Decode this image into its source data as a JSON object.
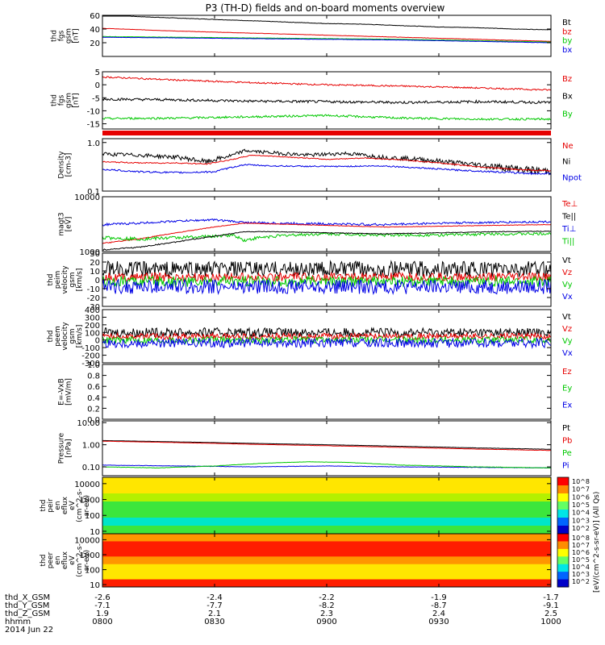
{
  "title": "P3 (TH-D) fields and on-board moments overview",
  "chart_data": [
    {
      "type": "line",
      "ylabel": [
        "thd",
        "fgs",
        "gsm",
        "[nT]"
      ],
      "ylim": [
        0,
        60
      ],
      "yticks": [
        "60",
        "40",
        "20"
      ],
      "yticks_val": [
        60,
        40,
        20
      ],
      "legend": [
        {
          "name": "Bt",
          "color": "#000000"
        },
        {
          "name": "bz",
          "color": "#e60000"
        },
        {
          "name": "by",
          "color": "#00c800"
        },
        {
          "name": "bx",
          "color": "#0000e6"
        }
      ],
      "series": [
        {
          "name": "Bt",
          "color": "#000000",
          "x": [
            0,
            10,
            20,
            30,
            40,
            50,
            60,
            70,
            80,
            90,
            100,
            110,
            120
          ],
          "values": [
            61,
            58,
            56,
            54,
            52,
            50,
            48,
            47,
            45,
            43,
            42,
            40,
            39
          ],
          "noise": 0.3
        },
        {
          "name": "bz",
          "color": "#e60000",
          "x": [
            0,
            20,
            40,
            60,
            80,
            100,
            120
          ],
          "values": [
            41,
            37,
            34,
            31,
            28,
            25,
            22
          ],
          "noise": 0.2
        },
        {
          "name": "by",
          "color": "#00c800",
          "x": [
            0,
            20,
            40,
            60,
            80,
            100,
            120
          ],
          "values": [
            29,
            28,
            27,
            26,
            25,
            23,
            21
          ],
          "noise": 0.2
        },
        {
          "name": "bx",
          "color": "#0000e6",
          "x": [
            0,
            20,
            40,
            60,
            80,
            100,
            120
          ],
          "values": [
            28,
            27,
            26,
            25,
            24,
            22,
            20
          ],
          "noise": 0.2
        }
      ]
    },
    {
      "type": "line",
      "ylabel": [
        "thd",
        "fgs",
        "gsm",
        "[nT]"
      ],
      "ylim": [
        -17,
        5
      ],
      "yticks": [
        "5",
        "0",
        "-5",
        "-10",
        "-15"
      ],
      "yticks_val": [
        5,
        0,
        -5,
        -10,
        -15
      ],
      "legend": [
        {
          "name": "Bz",
          "color": "#e60000"
        },
        {
          "name": "Bx",
          "color": "#000000"
        },
        {
          "name": "By",
          "color": "#00c800"
        }
      ],
      "series": [
        {
          "name": "Bz",
          "color": "#e60000",
          "x": [
            0,
            20,
            40,
            60,
            80,
            100,
            120
          ],
          "values": [
            3,
            1.8,
            0.8,
            0,
            -0.5,
            -1.2,
            -2
          ],
          "noise": 0.3
        },
        {
          "name": "Bx",
          "color": "#000000",
          "x": [
            0,
            20,
            40,
            60,
            80,
            100,
            120
          ],
          "values": [
            -5.5,
            -5.8,
            -6.3,
            -6.5,
            -6.8,
            -6.5,
            -6.8
          ],
          "noise": 0.5
        },
        {
          "name": "By",
          "color": "#00c800",
          "x": [
            0,
            20,
            40,
            60,
            80,
            100,
            120
          ],
          "values": [
            -13,
            -12.8,
            -12.3,
            -11.8,
            -12.8,
            -13.2,
            -13.2
          ],
          "noise": 0.4
        }
      ]
    },
    {
      "type": "line",
      "log": true,
      "ylabel": [
        "Density",
        "[cm-3]"
      ],
      "ylim": [
        0.1,
        1.2
      ],
      "yticks": [
        "1.0",
        "0.1"
      ],
      "yticks_val": [
        1.0,
        0.1
      ],
      "legend": [
        {
          "name": "Ne",
          "color": "#e60000"
        },
        {
          "name": "Ni",
          "color": "#000000"
        },
        {
          "name": "Npot",
          "color": "#0000e6"
        }
      ],
      "series": [
        {
          "name": "Ni",
          "color": "#000000",
          "x": [
            0,
            10,
            20,
            28,
            35,
            38,
            45,
            55,
            65,
            75,
            85,
            95,
            105,
            115,
            120
          ],
          "values": [
            0.58,
            0.55,
            0.5,
            0.4,
            0.55,
            0.68,
            0.62,
            0.55,
            0.6,
            0.5,
            0.45,
            0.38,
            0.32,
            0.27,
            0.26
          ],
          "noise": 0.05
        },
        {
          "name": "Ne",
          "color": "#e60000",
          "x": [
            0,
            10,
            20,
            28,
            35,
            40,
            50,
            60,
            70,
            80,
            90,
            100,
            110,
            120
          ],
          "values": [
            0.4,
            0.38,
            0.38,
            0.36,
            0.45,
            0.55,
            0.5,
            0.45,
            0.48,
            0.44,
            0.38,
            0.32,
            0.28,
            0.26
          ],
          "noise": 0.01
        },
        {
          "name": "Npot",
          "color": "#0000e6",
          "x": [
            0,
            10,
            20,
            30,
            38,
            45,
            60,
            75,
            85,
            95,
            105,
            115,
            120
          ],
          "values": [
            0.28,
            0.25,
            0.24,
            0.25,
            0.35,
            0.33,
            0.32,
            0.33,
            0.3,
            0.27,
            0.25,
            0.23,
            0.23
          ],
          "noise": 0.01
        }
      ]
    },
    {
      "type": "line",
      "log": true,
      "ylabel": [
        "magt3",
        "[eV]"
      ],
      "ylim": [
        1000,
        10000
      ],
      "yticks": [
        "10000",
        "1000"
      ],
      "yticks_val": [
        10000,
        1000
      ],
      "legend": [
        {
          "name": "Te⊥",
          "color": "#e60000"
        },
        {
          "name": "Te||",
          "color": "#000000"
        },
        {
          "name": "Ti⊥",
          "color": "#0000e6"
        },
        {
          "name": "Ti||",
          "color": "#00c800"
        }
      ],
      "series": [
        {
          "name": "Ti⊥",
          "color": "#0000e6",
          "x": [
            0,
            10,
            20,
            30,
            38,
            45,
            60,
            75,
            90,
            105,
            120
          ],
          "values": [
            3100,
            3300,
            3600,
            3800,
            3400,
            3300,
            3200,
            3100,
            3300,
            3400,
            3500
          ],
          "noise": 150
        },
        {
          "name": "Te⊥",
          "color": "#e60000",
          "x": [
            0,
            10,
            20,
            30,
            38,
            45,
            60,
            75,
            90,
            105,
            120
          ],
          "values": [
            1400,
            1700,
            2200,
            2800,
            3300,
            3200,
            3000,
            2800,
            2900,
            3000,
            3100
          ],
          "noise": 30
        },
        {
          "name": "Ti||",
          "color": "#00c800",
          "x": [
            0,
            10,
            20,
            30,
            35,
            38,
            42,
            50,
            60,
            75,
            90,
            105,
            120
          ],
          "values": [
            1800,
            1700,
            1800,
            1900,
            2000,
            1600,
            1800,
            2000,
            2100,
            2000,
            2000,
            2100,
            2100
          ],
          "noise": 120
        },
        {
          "name": "Te||",
          "color": "#000000",
          "x": [
            0,
            10,
            20,
            30,
            38,
            45,
            60,
            75,
            90,
            105,
            120
          ],
          "values": [
            1080,
            1200,
            1500,
            1900,
            2300,
            2300,
            2200,
            2100,
            2200,
            2300,
            2350
          ],
          "noise": 30
        }
      ]
    },
    {
      "type": "line",
      "ylabel": [
        "thd",
        "peim",
        "velocity",
        "gsm",
        "[km/s]"
      ],
      "ylim": [
        -30,
        30
      ],
      "yticks": [
        "30",
        "20",
        "10",
        "0",
        "-10",
        "-20",
        "-30"
      ],
      "yticks_val": [
        30,
        20,
        10,
        0,
        -10,
        -20,
        -30
      ],
      "legend": [
        {
          "name": "Vt",
          "color": "#000000"
        },
        {
          "name": "Vz",
          "color": "#e60000"
        },
        {
          "name": "Vy",
          "color": "#00c800"
        },
        {
          "name": "Vx",
          "color": "#0000e6"
        }
      ],
      "series": [
        {
          "name": "Vt",
          "color": "#000000",
          "x": [
            0,
            120
          ],
          "values": [
            12,
            12
          ],
          "noise": 9
        },
        {
          "name": "Vz",
          "color": "#e60000",
          "x": [
            0,
            120
          ],
          "values": [
            3,
            3
          ],
          "noise": 5
        },
        {
          "name": "Vy",
          "color": "#00c800",
          "x": [
            0,
            120
          ],
          "values": [
            -2,
            -2
          ],
          "noise": 6
        },
        {
          "name": "Vx",
          "color": "#0000e6",
          "x": [
            0,
            120
          ],
          "values": [
            -8,
            -8
          ],
          "noise": 8
        }
      ]
    },
    {
      "type": "line",
      "ylabel": [
        "thd",
        "peem",
        "velocity",
        "gsm",
        "[km/s]"
      ],
      "ylim": [
        -300,
        400
      ],
      "yticks": [
        "400",
        "300",
        "200",
        "100",
        "0",
        "-100",
        "-200",
        "-300"
      ],
      "yticks_val": [
        400,
        300,
        200,
        100,
        0,
        -100,
        -200,
        -300
      ],
      "legend": [
        {
          "name": "Vt",
          "color": "#000000"
        },
        {
          "name": "Vz",
          "color": "#e60000"
        },
        {
          "name": "Vy",
          "color": "#00c800"
        },
        {
          "name": "Vx",
          "color": "#0000e6"
        }
      ],
      "series": [
        {
          "name": "Vt",
          "color": "#000000",
          "x": [
            0,
            120
          ],
          "values": [
            100,
            100
          ],
          "noise": 60
        },
        {
          "name": "Vz",
          "color": "#e60000",
          "x": [
            0,
            120
          ],
          "values": [
            50,
            50
          ],
          "noise": 40
        },
        {
          "name": "Vy",
          "color": "#00c800",
          "x": [
            0,
            120
          ],
          "values": [
            0,
            0
          ],
          "noise": 45
        },
        {
          "name": "Vx",
          "color": "#0000e6",
          "x": [
            0,
            120
          ],
          "values": [
            -40,
            -40
          ],
          "noise": 60
        }
      ]
    },
    {
      "type": "line",
      "ylabel": [
        "E=-VxB",
        "[mV/m]"
      ],
      "ylim": [
        0,
        1
      ],
      "yticks": [
        "1.0",
        "0.8",
        "0.6",
        "0.4",
        "0.2",
        "0.0"
      ],
      "yticks_val": [
        1.0,
        0.8,
        0.6,
        0.4,
        0.2,
        0.0
      ],
      "legend": [
        {
          "name": "Ez",
          "color": "#e60000"
        },
        {
          "name": "Ey",
          "color": "#00c800"
        },
        {
          "name": "Ex",
          "color": "#0000e6"
        }
      ],
      "series": []
    },
    {
      "type": "line",
      "log": true,
      "ylabel": [
        "Pressure",
        "[nPa]"
      ],
      "ylim": [
        0.04,
        12
      ],
      "yticks": [
        "10.00",
        "1.00",
        "0.10"
      ],
      "yticks_val": [
        10,
        1,
        0.1
      ],
      "legend": [
        {
          "name": "Pt",
          "color": "#000000"
        },
        {
          "name": "Pb",
          "color": "#e60000"
        },
        {
          "name": "Pe",
          "color": "#00c800"
        },
        {
          "name": "Pi",
          "color": "#0000e6"
        }
      ],
      "series": [
        {
          "name": "Pt",
          "color": "#000000",
          "x": [
            0,
            20,
            40,
            60,
            80,
            100,
            120
          ],
          "values": [
            1.55,
            1.35,
            1.15,
            1.0,
            0.85,
            0.72,
            0.62
          ],
          "noise": 0.01
        },
        {
          "name": "Pb",
          "color": "#e60000",
          "x": [
            0,
            20,
            40,
            60,
            80,
            100,
            120
          ],
          "values": [
            1.45,
            1.25,
            1.05,
            0.9,
            0.76,
            0.64,
            0.55
          ],
          "noise": 0.01
        },
        {
          "name": "Pi",
          "color": "#0000e6",
          "x": [
            0,
            20,
            40,
            60,
            80,
            100,
            120
          ],
          "values": [
            0.12,
            0.11,
            0.1,
            0.11,
            0.1,
            0.095,
            0.09
          ],
          "noise": 0.002
        },
        {
          "name": "Pe",
          "color": "#00c800",
          "x": [
            0,
            15,
            30,
            45,
            55,
            65,
            80,
            100,
            120
          ],
          "values": [
            0.1,
            0.09,
            0.11,
            0.15,
            0.17,
            0.16,
            0.12,
            0.1,
            0.09
          ],
          "noise": 0.002
        }
      ]
    },
    {
      "type": "heatmap",
      "ylabel": [
        "thd",
        "peir",
        "en",
        "eflux",
        "eV",
        "(cm^2-s-",
        "sr-eV)"
      ],
      "yticks": [
        "10000",
        "1000",
        "100",
        "10"
      ],
      "yticks_val": [
        10000,
        1000,
        100,
        10
      ],
      "ylim": [
        7,
        25000
      ],
      "colorbar_ticks": [
        "10^8",
        "10^7",
        "10^6",
        "10^5",
        "10^4",
        "10^3",
        "10^2"
      ],
      "colorbar_label": "[eV/(cm^2-s-sr-eV)] (All Qs)",
      "description_rows": [
        "yellow",
        "yellow",
        "yellow-green",
        "green",
        "green",
        "cyan",
        "green"
      ]
    },
    {
      "type": "heatmap",
      "ylabel": [
        "thd",
        "peer",
        "en",
        "eflux",
        "eV",
        "(cm^2-s-",
        "sr-eV)"
      ],
      "yticks": [
        "10000",
        "1000",
        "100",
        "10"
      ],
      "yticks_val": [
        10000,
        1000,
        100,
        10
      ],
      "ylim": [
        7,
        25000
      ],
      "colorbar_ticks": [
        "10^8",
        "10^7",
        "10^6",
        "10^5",
        "10^4",
        "10^3",
        "10^2"
      ],
      "colorbar_label": "[eV/(cm^2-s-sr-eV)] (All Qs)",
      "description_rows": [
        "orange",
        "red",
        "red",
        "orange",
        "yellow",
        "yellow",
        "red"
      ]
    }
  ],
  "orbit_rows": [
    {
      "label": "thd_X_GSM",
      "values": [
        "-2.6",
        "-2.4",
        "-2.2",
        "-1.9",
        "-1.7"
      ]
    },
    {
      "label": "thd_Y_GSM",
      "values": [
        "-7.1",
        "-7.7",
        "-8.2",
        "-8.7",
        "-9.1"
      ]
    },
    {
      "label": "thd_Z_GSM",
      "values": [
        "1.9",
        "2.1",
        "2.3",
        "2.4",
        "2.5"
      ]
    },
    {
      "label": "hhmm",
      "values": [
        "0800",
        "0830",
        "0900",
        "0930",
        "1000"
      ]
    },
    {
      "label": "2014 Jun 22",
      "values": []
    }
  ],
  "x_range_minutes": [
    0,
    120
  ],
  "x_tick_minutes": [
    0,
    30,
    60,
    90,
    120
  ],
  "colors": {
    "red": "#e60000",
    "green": "#00c800",
    "blue": "#0000e6",
    "black": "#000000"
  }
}
